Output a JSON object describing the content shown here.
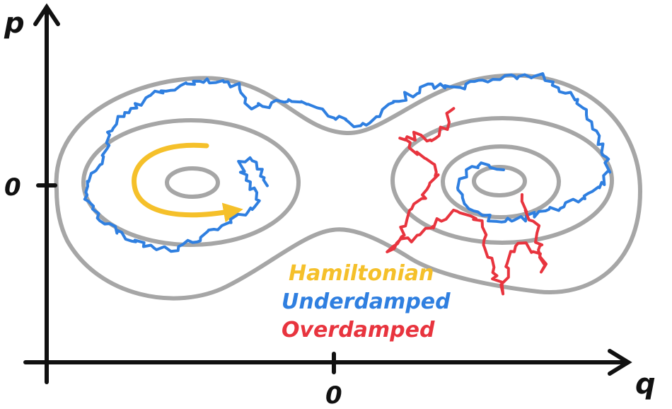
{
  "axes": {
    "x_label": "q",
    "y_label": "p",
    "x_origin_label": "0",
    "y_origin_label": "0"
  },
  "legend": [
    {
      "label": "Hamiltonian",
      "color": "#f5c02a"
    },
    {
      "label": "Underdamped",
      "color": "#2f7fe0"
    },
    {
      "label": "Overdamped",
      "color": "#e8343e"
    }
  ],
  "colors": {
    "axis": "#111111",
    "contour": "#a6a6a6",
    "hamiltonian": "#f5c02a",
    "underdamped": "#2f7fe0",
    "overdamped": "#e8343e"
  }
}
